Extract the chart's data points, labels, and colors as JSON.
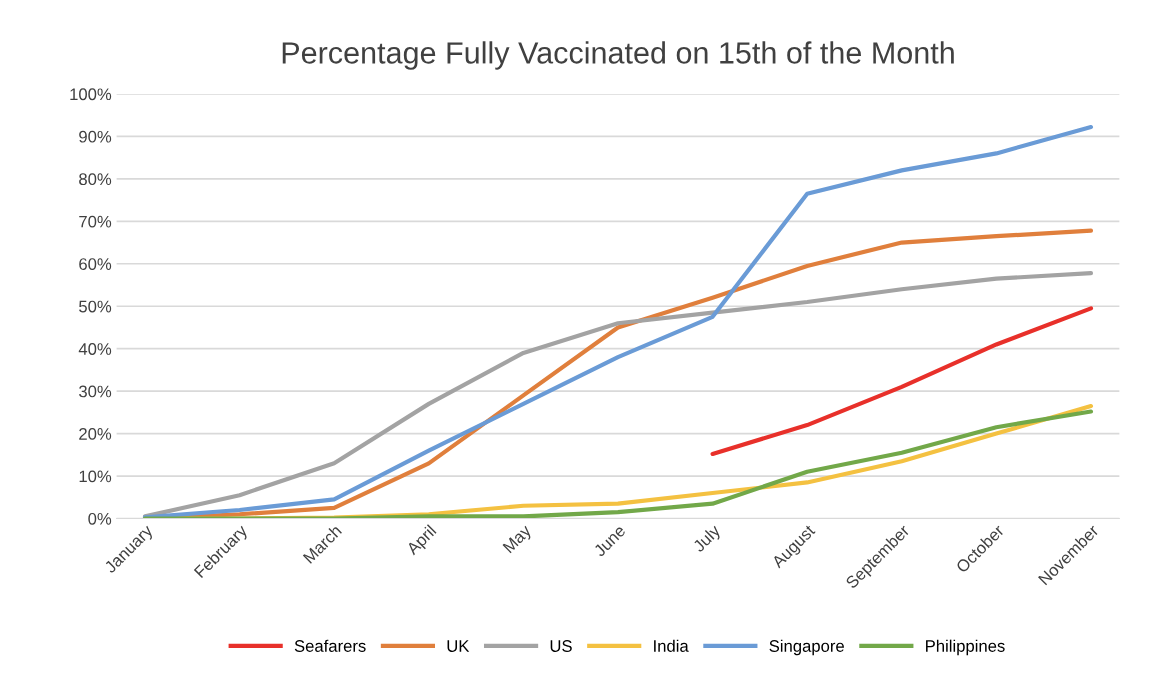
{
  "chart_data": {
    "type": "line",
    "title": "Percentage Fully Vaccinated on 15th of the Month",
    "categories": [
      "January",
      "February",
      "March",
      "April",
      "May",
      "June",
      "July",
      "August",
      "September",
      "October",
      "November"
    ],
    "series": [
      {
        "name": "Seafarers",
        "color": "#e8302a",
        "values": [
          null,
          null,
          null,
          null,
          null,
          null,
          15.2,
          22,
          31,
          41,
          49.5
        ]
      },
      {
        "name": "UK",
        "color": "#e07f3c",
        "values": [
          0,
          1,
          2.5,
          13,
          29,
          45,
          52,
          59.5,
          65,
          66.5,
          67.8
        ]
      },
      {
        "name": "US",
        "color": "#a3a3a3",
        "values": [
          0.5,
          5.5,
          13,
          27,
          39,
          46,
          48.5,
          51,
          54,
          56.5,
          57.8
        ]
      },
      {
        "name": "India",
        "color": "#f4c141",
        "values": [
          0,
          0,
          0.2,
          1,
          3,
          3.5,
          6,
          8.5,
          13.5,
          20,
          26.5
        ]
      },
      {
        "name": "Singapore",
        "color": "#6a9bd6",
        "values": [
          0.3,
          2,
          4.5,
          16,
          27,
          38,
          47.5,
          76.5,
          82,
          86,
          92.2
        ]
      },
      {
        "name": "Philippines",
        "color": "#72a849",
        "values": [
          0,
          0,
          0,
          0.5,
          0.5,
          1.5,
          3.5,
          11,
          15.5,
          21.5,
          25.2
        ]
      }
    ],
    "ylim": [
      0,
      100
    ],
    "yticks": [
      {
        "value": 0,
        "label": "0%"
      },
      {
        "value": 10,
        "label": "10%"
      },
      {
        "value": 20,
        "label": "20%"
      },
      {
        "value": 30,
        "label": "30%"
      },
      {
        "value": 40,
        "label": "40%"
      },
      {
        "value": 50,
        "label": "50%"
      },
      {
        "value": 60,
        "label": "60%"
      },
      {
        "value": 70,
        "label": "70%"
      },
      {
        "value": 80,
        "label": "80%"
      },
      {
        "value": 90,
        "label": "90%"
      },
      {
        "value": 100,
        "label": "100%"
      }
    ],
    "grid": "y",
    "legend": "bottom",
    "marker": "none",
    "line_style": "solid"
  }
}
